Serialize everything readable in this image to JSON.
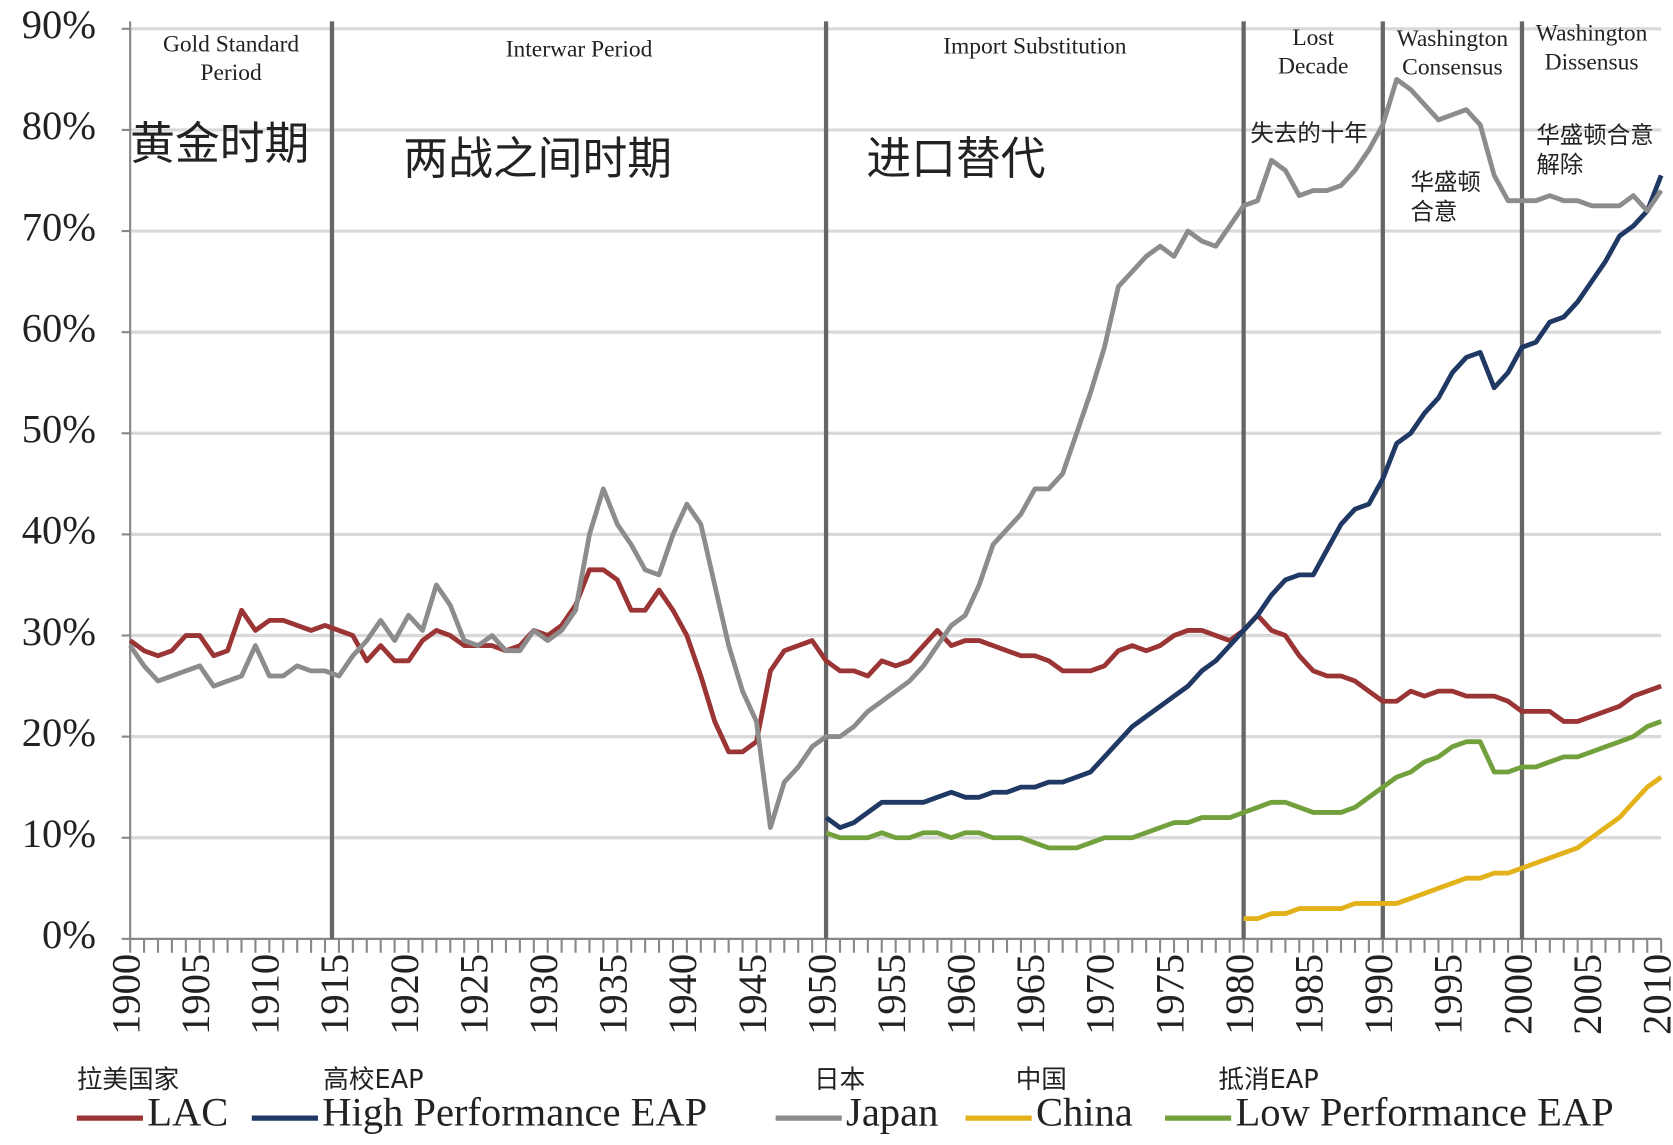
{
  "chart_data": {
    "type": "line",
    "xlim": [
      1900,
      2010
    ],
    "xticks": [
      1900,
      1905,
      1910,
      1915,
      1920,
      1925,
      1930,
      1935,
      1940,
      1945,
      1950,
      1955,
      1960,
      1965,
      1970,
      1975,
      1980,
      1985,
      1990,
      1995,
      2000,
      2005,
      2010
    ],
    "ylim": [
      0,
      90
    ],
    "yticks": [
      {
        "value": 0,
        "label": "0%"
      },
      {
        "value": 10,
        "label": "10%"
      },
      {
        "value": 20,
        "label": "20%"
      },
      {
        "value": 30,
        "label": "30%"
      },
      {
        "value": 40,
        "label": "40%"
      },
      {
        "value": 50,
        "label": "50%"
      },
      {
        "value": 60,
        "label": "60%"
      },
      {
        "value": 70,
        "label": "70%"
      },
      {
        "value": 80,
        "label": "80%"
      },
      {
        "value": 90,
        "label": "90%"
      }
    ],
    "grid": true,
    "dividers": [
      1914.5,
      1950,
      1980,
      1990,
      2000
    ],
    "periods": [
      {
        "label": [
          "Gold Standard",
          "Period"
        ],
        "label_zh": [
          "黄金时期"
        ]
      },
      {
        "label": [
          "Interwar Period"
        ],
        "label_zh": [
          "两战之间时期"
        ]
      },
      {
        "label": [
          "Import Substitution"
        ],
        "label_zh": [
          "进口替代"
        ]
      },
      {
        "label": [
          "Lost",
          "Decade"
        ],
        "label_zh": [
          "失去的十年"
        ]
      },
      {
        "label": [
          "Washington",
          "Consensus"
        ],
        "label_zh": [
          "华盛顿",
          "合意"
        ]
      },
      {
        "label": [
          "Washington",
          "Dissensus"
        ],
        "label_zh": [
          "华盛顿合意",
          "解除"
        ]
      }
    ],
    "x": [
      1900,
      1901,
      1902,
      1903,
      1904,
      1905,
      1906,
      1907,
      1908,
      1909,
      1910,
      1911,
      1912,
      1913,
      1914,
      1915,
      1916,
      1917,
      1918,
      1919,
      1920,
      1921,
      1922,
      1923,
      1924,
      1925,
      1926,
      1927,
      1928,
      1929,
      1930,
      1931,
      1932,
      1933,
      1934,
      1935,
      1936,
      1937,
      1938,
      1939,
      1940,
      1941,
      1942,
      1943,
      1944,
      1945,
      1946,
      1947,
      1948,
      1949,
      1950,
      1951,
      1952,
      1953,
      1954,
      1955,
      1956,
      1957,
      1958,
      1959,
      1960,
      1961,
      1962,
      1963,
      1964,
      1965,
      1966,
      1967,
      1968,
      1969,
      1970,
      1971,
      1972,
      1973,
      1974,
      1975,
      1976,
      1977,
      1978,
      1979,
      1980,
      1981,
      1982,
      1983,
      1984,
      1985,
      1986,
      1987,
      1988,
      1989,
      1990,
      1991,
      1992,
      1993,
      1994,
      1995,
      1996,
      1997,
      1998,
      1999,
      2000,
      2001,
      2002,
      2003,
      2004,
      2005,
      2006,
      2007,
      2008,
      2009,
      2010
    ],
    "series": [
      {
        "name": "LAC",
        "name_zh": "拉美国家",
        "color": "#9b3434",
        "values": [
          29.5,
          28.5,
          28,
          28.5,
          30,
          30,
          28,
          28.5,
          32.5,
          30.5,
          31.5,
          31.5,
          31,
          30.5,
          31,
          30.5,
          30,
          27.5,
          29,
          27.5,
          27.5,
          29.5,
          30.5,
          30,
          29,
          29,
          29,
          28.5,
          29,
          30.5,
          30,
          31,
          33,
          36.5,
          36.5,
          35.5,
          32.5,
          32.5,
          34.5,
          32.5,
          30,
          26,
          21.5,
          18.5,
          18.5,
          19.5,
          26.5,
          28.5,
          29,
          29.5,
          27.5,
          26.5,
          26.5,
          26,
          27.5,
          27,
          27.5,
          29,
          30.5,
          29,
          29.5,
          29.5,
          29,
          28.5,
          28,
          28,
          27.5,
          26.5,
          26.5,
          26.5,
          27,
          28.5,
          29,
          28.5,
          29,
          30,
          30.5,
          30.5,
          30,
          29.5,
          30.5,
          32,
          30.5,
          30,
          28,
          26.5,
          26,
          26,
          25.5,
          24.5,
          23.5,
          23.5,
          24.5,
          24,
          24.5,
          24.5,
          24,
          24,
          24,
          23.5,
          22.5,
          22.5,
          22.5,
          21.5,
          21.5,
          22,
          22.5,
          23,
          24,
          24.5,
          25
        ]
      },
      {
        "name": "High Performance EAP",
        "name_zh": "高校EAP",
        "color": "#1f3864",
        "values": [
          null,
          null,
          null,
          null,
          null,
          null,
          null,
          null,
          null,
          null,
          null,
          null,
          null,
          null,
          null,
          null,
          null,
          null,
          null,
          null,
          null,
          null,
          null,
          null,
          null,
          null,
          null,
          null,
          null,
          null,
          null,
          null,
          null,
          null,
          null,
          null,
          null,
          null,
          null,
          null,
          null,
          null,
          null,
          null,
          null,
          null,
          null,
          null,
          null,
          null,
          12,
          11,
          11.5,
          12.5,
          13.5,
          13.5,
          13.5,
          13.5,
          14,
          14.5,
          14,
          14,
          14.5,
          14.5,
          15,
          15,
          15.5,
          15.5,
          16,
          16.5,
          18,
          19.5,
          21,
          22,
          23,
          24,
          25,
          26.5,
          27.5,
          29,
          30.5,
          32,
          34,
          35.5,
          36,
          36,
          38.5,
          41,
          42.5,
          43,
          45.5,
          49,
          50,
          52,
          53.5,
          56,
          57.5,
          58,
          54.5,
          56,
          58.5,
          59,
          61,
          61.5,
          63,
          65,
          67,
          69.5,
          70.5,
          72,
          75.5
        ]
      },
      {
        "name": "Japan",
        "name_zh": "日本",
        "color": "#8c8c8c",
        "values": [
          29,
          27,
          25.5,
          26,
          26.5,
          27,
          25,
          25.5,
          26,
          29,
          26,
          26,
          27,
          26.5,
          26.5,
          26,
          28,
          29.5,
          31.5,
          29.5,
          32,
          30.5,
          35,
          33,
          29.5,
          29,
          30,
          28.5,
          28.5,
          30.5,
          29.5,
          30.5,
          32.5,
          40,
          44.5,
          41,
          39,
          36.5,
          36,
          40,
          43,
          41,
          35,
          29,
          24.5,
          21.5,
          11,
          15.5,
          17,
          19,
          20,
          20,
          21,
          22.5,
          23.5,
          24.5,
          25.5,
          27,
          29,
          31,
          32,
          35,
          39,
          40.5,
          42,
          44.5,
          44.5,
          46,
          50,
          54,
          58.5,
          64.5,
          66,
          67.5,
          68.5,
          67.5,
          70,
          69,
          68.5,
          70.5,
          72.5,
          73,
          77,
          76,
          73.5,
          74,
          74,
          74.5,
          76,
          78,
          80.5,
          85,
          84,
          82.5,
          81,
          81.5,
          82,
          80.5,
          75.5,
          73,
          73,
          73,
          73.5,
          73,
          73,
          72.5,
          72.5,
          72.5,
          73.5,
          72,
          74
        ]
      },
      {
        "name": "China",
        "name_zh": "中国",
        "color": "#e3b11a",
        "values": [
          null,
          null,
          null,
          null,
          null,
          null,
          null,
          null,
          null,
          null,
          null,
          null,
          null,
          null,
          null,
          null,
          null,
          null,
          null,
          null,
          null,
          null,
          null,
          null,
          null,
          null,
          null,
          null,
          null,
          null,
          null,
          null,
          null,
          null,
          null,
          null,
          null,
          null,
          null,
          null,
          null,
          null,
          null,
          null,
          null,
          null,
          null,
          null,
          null,
          null,
          null,
          null,
          null,
          null,
          null,
          null,
          null,
          null,
          null,
          null,
          null,
          null,
          null,
          null,
          null,
          null,
          null,
          null,
          null,
          null,
          null,
          null,
          null,
          null,
          null,
          null,
          null,
          null,
          null,
          null,
          2,
          2,
          2.5,
          2.5,
          3,
          3,
          3,
          3,
          3.5,
          3.5,
          3.5,
          3.5,
          4,
          4.5,
          5,
          5.5,
          6,
          6,
          6.5,
          6.5,
          7,
          7.5,
          8,
          8.5,
          9,
          10,
          11,
          12,
          13.5,
          15,
          16
        ]
      },
      {
        "name": "Low Performance EAP",
        "name_zh": "抵消EAP",
        "color": "#72a03d",
        "values": [
          null,
          null,
          null,
          null,
          null,
          null,
          null,
          null,
          null,
          null,
          null,
          null,
          null,
          null,
          null,
          null,
          null,
          null,
          null,
          null,
          null,
          null,
          null,
          null,
          null,
          null,
          null,
          null,
          null,
          null,
          null,
          null,
          null,
          null,
          null,
          null,
          null,
          null,
          null,
          null,
          null,
          null,
          null,
          null,
          null,
          null,
          null,
          null,
          null,
          null,
          10.5,
          10,
          10,
          10,
          10.5,
          10,
          10,
          10.5,
          10.5,
          10,
          10.5,
          10.5,
          10,
          10,
          10,
          9.5,
          9,
          9,
          9,
          9.5,
          10,
          10,
          10,
          10.5,
          11,
          11.5,
          11.5,
          12,
          12,
          12,
          12.5,
          13,
          13.5,
          13.5,
          13,
          12.5,
          12.5,
          12.5,
          13,
          14,
          15,
          16,
          16.5,
          17.5,
          18,
          19,
          19.5,
          19.5,
          16.5,
          16.5,
          17,
          17,
          17.5,
          18,
          18,
          18.5,
          19,
          19.5,
          20,
          21,
          21.5
        ]
      }
    ]
  }
}
